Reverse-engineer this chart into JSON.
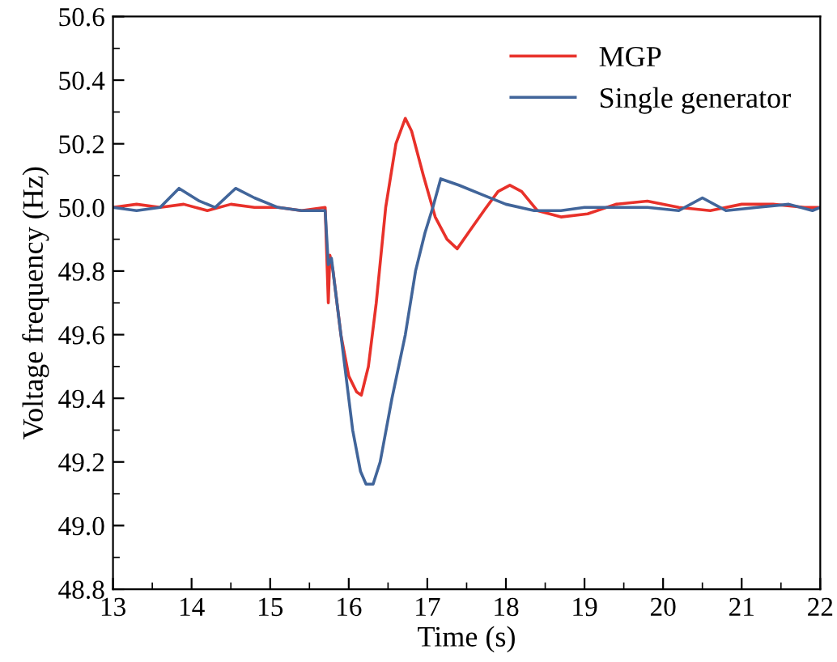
{
  "chart_data": {
    "type": "line",
    "xlabel": "Time (s)",
    "ylabel": "Voltage frequency (Hz)",
    "xlim": [
      13,
      22
    ],
    "xticks": [
      13,
      14,
      15,
      16,
      17,
      18,
      19,
      20,
      21,
      22
    ],
    "ylim": [
      48.8,
      50.6
    ],
    "yticks": [
      48.8,
      {
        "value": 49,
        "label": "49.0"
      },
      49.2,
      49.4,
      49.6,
      49.8,
      {
        "value": 50,
        "label": "50.0"
      },
      50.2,
      50.4,
      50.6
    ],
    "grid": false,
    "legend": "top right",
    "marker": "none",
    "line_style": "solid",
    "series": [
      {
        "name": "MGP",
        "color": "#e8312a",
        "x": [
          13,
          13.3,
          13.6,
          13.9,
          14.2,
          14.5,
          14.8,
          15.1,
          15.4,
          15.7,
          15.74,
          15.76,
          15.8,
          15.9,
          16.0,
          16.1,
          16.16,
          16.25,
          16.35,
          16.47,
          16.6,
          16.72,
          16.8,
          16.95,
          17.1,
          17.25,
          17.38,
          17.55,
          17.75,
          17.9,
          18.05,
          18.2,
          18.4,
          18.7,
          19.04,
          19.4,
          19.8,
          20.2,
          20.6,
          21.0,
          21.4,
          21.8,
          22
        ],
        "values": [
          50.0,
          50.01,
          50.0,
          50.01,
          49.99,
          50.01,
          50.0,
          50.0,
          49.99,
          50.0,
          49.7,
          49.85,
          49.8,
          49.6,
          49.47,
          49.42,
          49.41,
          49.5,
          49.7,
          50.0,
          50.2,
          50.28,
          50.24,
          50.1,
          49.97,
          49.9,
          49.87,
          49.93,
          50.0,
          50.05,
          50.07,
          50.05,
          49.99,
          49.97,
          49.98,
          50.01,
          50.02,
          50.0,
          49.99,
          50.01,
          50.01,
          50.0,
          50.0
        ]
      },
      {
        "name": "Single generator",
        "color": "#41659a",
        "x": [
          13,
          13.3,
          13.6,
          13.84,
          14.1,
          14.3,
          14.56,
          14.8,
          15.1,
          15.4,
          15.7,
          15.74,
          15.78,
          15.85,
          15.95,
          16.05,
          16.15,
          16.22,
          16.31,
          16.4,
          16.55,
          16.72,
          16.85,
          16.97,
          17.07,
          17.17,
          17.4,
          17.7,
          18.0,
          18.36,
          18.7,
          19.0,
          19.4,
          19.8,
          20.2,
          20.5,
          20.8,
          21.2,
          21.6,
          21.9,
          22
        ],
        "values": [
          50.0,
          49.99,
          50.0,
          50.06,
          50.02,
          50.0,
          50.06,
          50.03,
          50.0,
          49.99,
          49.99,
          49.82,
          49.84,
          49.7,
          49.5,
          49.3,
          49.17,
          49.13,
          49.13,
          49.2,
          49.4,
          49.6,
          49.8,
          49.92,
          50.0,
          50.09,
          50.07,
          50.04,
          50.01,
          49.99,
          49.99,
          50.0,
          50.0,
          50.0,
          49.99,
          50.03,
          49.99,
          50.0,
          50.01,
          49.99,
          50.0
        ]
      }
    ]
  }
}
